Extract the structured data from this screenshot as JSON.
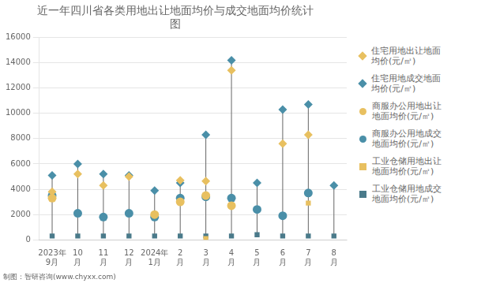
{
  "chart_data": {
    "type": "scatter",
    "title": "近一年四川省各类用地出让地面均价与成交地面均价统计\n图",
    "categories": [
      "2023年\n9月",
      "10\n月",
      "11\n月",
      "12\n月",
      "2024年\n1月",
      "2\n月",
      "3\n月",
      "4\n月",
      "5\n月",
      "6\n月",
      "7\n月",
      "8\n月"
    ],
    "ylim": [
      0,
      16000
    ],
    "yticks": [
      0,
      2000,
      4000,
      6000,
      8000,
      10000,
      12000,
      14000,
      16000
    ],
    "grid": "y",
    "legend": "right",
    "annotations": [
      "制图：智研咨询(www.chyxx.com)"
    ],
    "series": [
      {
        "name": "住宅用地出让地面\n均价(元/㎡)",
        "color": "#E8C060",
        "marker": "diamond",
        "values": [
          3800,
          5200,
          4300,
          5000,
          null,
          4700,
          4650,
          13400,
          null,
          7600,
          8300,
          null
        ]
      },
      {
        "name": "住宅用地成交地面\n均价(元/㎡)",
        "color": "#4A8FA8",
        "marker": "diamond",
        "values": [
          5100,
          6000,
          5200,
          5100,
          3900,
          4500,
          8300,
          14200,
          4500,
          10300,
          10700,
          4300
        ]
      },
      {
        "name": "商服办公用地出让\n地面均价(元/㎡)",
        "color": "#E8C060",
        "marker": "circle",
        "values": [
          3300,
          null,
          null,
          null,
          2000,
          3000,
          3500,
          2700,
          null,
          null,
          null,
          null
        ]
      },
      {
        "name": "商服办公用地成交\n地面均价(元/㎡)",
        "color": "#4A8FA8",
        "marker": "circle",
        "values": [
          3500,
          2100,
          1800,
          2100,
          1800,
          3300,
          3400,
          3300,
          2400,
          1900,
          3700,
          null
        ]
      },
      {
        "name": "工业仓储用地出让\n地面均价(元/㎡)",
        "color": "#E8C060",
        "marker": "square",
        "values": [
          null,
          null,
          null,
          null,
          2000,
          null,
          100,
          null,
          null,
          null,
          2900,
          null
        ]
      },
      {
        "name": "工业仓储用地成交\n地面均价(元/㎡)",
        "color": "#4A7A8A",
        "marker": "square",
        "values": [
          300,
          300,
          300,
          300,
          300,
          300,
          300,
          300,
          400,
          300,
          300,
          300
        ]
      }
    ]
  }
}
